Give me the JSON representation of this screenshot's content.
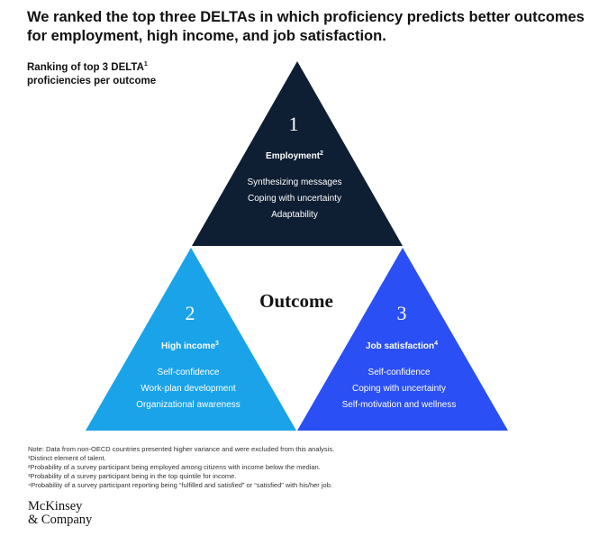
{
  "title": "We ranked the top three DELTAs in which proficiency predicts better outcomes for employment, high income, and job satisfaction.",
  "subtitle": "Ranking of top 3 DELTA",
  "subtitle_sup": "1",
  "subtitle_line2": "proficiencies per outcome",
  "center_label": "Outcome",
  "colors": {
    "top": "#0e1e33",
    "left": "#1aa3e8",
    "right": "#2a4ff5",
    "text_on_shape": "#ffffff"
  },
  "triangles": [
    {
      "rank": "1",
      "heading": "Employment",
      "heading_sup": "2",
      "items": [
        "Synthesizing messages",
        "Coping with uncertainty",
        "Adaptability"
      ]
    },
    {
      "rank": "2",
      "heading": "High income",
      "heading_sup": "3",
      "items": [
        "Self-confidence",
        "Work-plan development",
        "Organizational awareness"
      ]
    },
    {
      "rank": "3",
      "heading": "Job satisfaction",
      "heading_sup": "4",
      "items": [
        "Self-confidence",
        "Coping with uncertainty",
        "Self-motivation and wellness"
      ]
    }
  ],
  "notes": [
    "Note: Data from non-OECD countries presented higher variance and were excluded from this analysis.",
    "¹Distinct element of talent.",
    "²Probability of a survey participant being employed among citizens with income below the median.",
    "³Probability of a survey participant being in the top quintile for income.",
    "⁴Probability of a survey participant reporting being “fulfilled and satisfied” or “satisfied” with his/her job."
  ],
  "logo": {
    "line1": "McKinsey",
    "line2": "& Company"
  }
}
